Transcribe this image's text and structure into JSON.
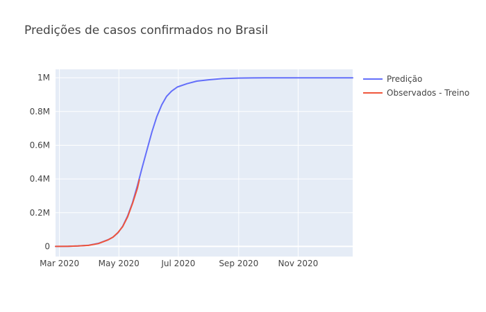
{
  "chart_data": {
    "type": "line",
    "title": "Predições de casos confirmados no Brasil",
    "xlabel": "",
    "ylabel": "",
    "x_range": [
      "2020-02-26",
      "2020-12-27"
    ],
    "y_range": [
      -60000,
      1050000
    ],
    "x_ticks": [
      {
        "date": "2020-03-01",
        "label": "Mar 2020"
      },
      {
        "date": "2020-05-01",
        "label": "May 2020"
      },
      {
        "date": "2020-07-01",
        "label": "Jul 2020"
      },
      {
        "date": "2020-09-01",
        "label": "Sep 2020"
      },
      {
        "date": "2020-11-01",
        "label": "Nov 2020"
      }
    ],
    "y_ticks": [
      {
        "value": 0,
        "label": "0"
      },
      {
        "value": 200000,
        "label": "0.2M"
      },
      {
        "value": 400000,
        "label": "0.4M"
      },
      {
        "value": 600000,
        "label": "0.6M"
      },
      {
        "value": 800000,
        "label": "0.8M"
      },
      {
        "value": 1000000,
        "label": "1M"
      }
    ],
    "grid": true,
    "legend_position": "right-top",
    "plot_background": "#e5ecf6",
    "series": [
      {
        "name": "Predição",
        "color": "#636efa",
        "points": [
          [
            "2020-02-26",
            0
          ],
          [
            "2020-03-10",
            1000
          ],
          [
            "2020-03-20",
            3000
          ],
          [
            "2020-03-31",
            7000
          ],
          [
            "2020-04-10",
            18000
          ],
          [
            "2020-04-20",
            40000
          ],
          [
            "2020-04-25",
            55000
          ],
          [
            "2020-04-30",
            80000
          ],
          [
            "2020-05-05",
            120000
          ],
          [
            "2020-05-10",
            180000
          ],
          [
            "2020-05-15",
            260000
          ],
          [
            "2020-05-20",
            360000
          ],
          [
            "2020-05-25",
            470000
          ],
          [
            "2020-05-30",
            575000
          ],
          [
            "2020-06-04",
            680000
          ],
          [
            "2020-06-09",
            770000
          ],
          [
            "2020-06-14",
            840000
          ],
          [
            "2020-06-19",
            890000
          ],
          [
            "2020-06-24",
            920000
          ],
          [
            "2020-06-30",
            945000
          ],
          [
            "2020-07-10",
            965000
          ],
          [
            "2020-07-20",
            980000
          ],
          [
            "2020-08-01",
            988000
          ],
          [
            "2020-08-15",
            995000
          ],
          [
            "2020-09-01",
            998000
          ],
          [
            "2020-09-15",
            999000
          ],
          [
            "2020-10-01",
            1000000
          ],
          [
            "2020-10-15",
            1000000
          ],
          [
            "2020-11-01",
            1000000
          ],
          [
            "2020-11-15",
            1000000
          ],
          [
            "2020-12-01",
            1000000
          ],
          [
            "2020-12-27",
            1000000
          ]
        ]
      },
      {
        "name": "Observados - Treino",
        "color": "#ef553b",
        "points": [
          [
            "2020-02-26",
            0
          ],
          [
            "2020-03-10",
            700
          ],
          [
            "2020-03-20",
            2500
          ],
          [
            "2020-03-31",
            6000
          ],
          [
            "2020-04-10",
            17000
          ],
          [
            "2020-04-20",
            39000
          ],
          [
            "2020-04-25",
            55000
          ],
          [
            "2020-04-30",
            82000
          ],
          [
            "2020-05-05",
            118000
          ],
          [
            "2020-05-10",
            175000
          ],
          [
            "2020-05-15",
            255000
          ],
          [
            "2020-05-20",
            345000
          ],
          [
            "2020-05-22",
            395000
          ]
        ]
      }
    ]
  }
}
